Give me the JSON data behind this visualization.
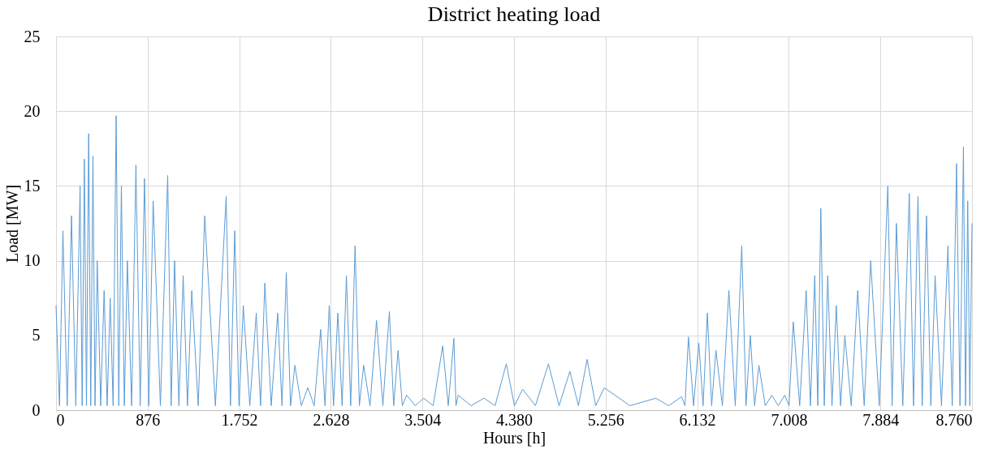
{
  "chart_data": {
    "type": "line",
    "title": "District heating load",
    "xlabel": "Hours [h]",
    "ylabel": "Load [MW]",
    "x": [
      0,
      33,
      66,
      107,
      148,
      189,
      230,
      250,
      271,
      291,
      312,
      332,
      353,
      373,
      394,
      427,
      460,
      489,
      518,
      546,
      575,
      600,
      625,
      653,
      682,
      723,
      764,
      805,
      846,
      887,
      929,
      998,
      1068,
      1101,
      1134,
      1175,
      1216,
      1257,
      1298,
      1360,
      1422,
      1524,
      1627,
      1668,
      1709,
      1750,
      1791,
      1853,
      1915,
      1956,
      1997,
      2058,
      2120,
      2161,
      2202,
      2243,
      2284,
      2346,
      2408,
      2469,
      2531,
      2572,
      2613,
      2654,
      2695,
      2736,
      2777,
      2818,
      2860,
      2901,
      2942,
      3003,
      3065,
      3126,
      3188,
      3229,
      3271,
      3312,
      3353,
      3435,
      3517,
      3607,
      3698,
      3751,
      3805,
      3825,
      3846,
      3969,
      4093,
      4199,
      4306,
      4384,
      4462,
      4585,
      4709,
      4811,
      4914,
      4996,
      5079,
      5161,
      5243,
      5489,
      5736,
      5859,
      5983,
      6015,
      6048,
      6097,
      6147,
      6188,
      6229,
      6270,
      6311,
      6373,
      6435,
      6496,
      6558,
      6599,
      6640,
      6681,
      6722,
      6783,
      6845,
      6907,
      6969,
      7010,
      7051,
      7112,
      7174,
      7215,
      7256,
      7285,
      7314,
      7347,
      7380,
      7421,
      7462,
      7503,
      7544,
      7605,
      7667,
      7729,
      7791,
      7873,
      7955,
      7996,
      8037,
      8098,
      8160,
      8201,
      8243,
      8284,
      8325,
      8366,
      8407,
      8468,
      8530,
      8571,
      8612,
      8645,
      8678,
      8698,
      8719,
      8739,
      8760
    ],
    "values": [
      7,
      0.3,
      12,
      0.3,
      13,
      0.3,
      15,
      0.3,
      16.8,
      0.3,
      18.5,
      0.3,
      17,
      0.3,
      10,
      0.3,
      8,
      0.3,
      7.5,
      0.3,
      19.7,
      0.3,
      15,
      0.3,
      10,
      0.3,
      16.4,
      0.3,
      15.5,
      0.3,
      14,
      0.3,
      15.7,
      0.3,
      10,
      0.3,
      9,
      0.3,
      8,
      0.3,
      13,
      0.3,
      14.3,
      0.3,
      12,
      0.3,
      7,
      0.3,
      6.5,
      0.3,
      8.5,
      0.3,
      6.5,
      0.3,
      9.2,
      0.3,
      3,
      0.3,
      1.5,
      0.3,
      5.4,
      0.3,
      7,
      0.3,
      6.5,
      0.3,
      9,
      0.3,
      11,
      0.3,
      3,
      0.3,
      6,
      0.3,
      6.6,
      0.3,
      4,
      0.3,
      1,
      0.3,
      0.8,
      0.3,
      4.3,
      0.3,
      4.8,
      0.3,
      1,
      0.3,
      0.8,
      0.3,
      3.1,
      0.3,
      1.4,
      0.3,
      3.1,
      0.3,
      2.6,
      0.3,
      3.4,
      0.3,
      1.5,
      0.3,
      0.8,
      0.3,
      0.9,
      0.3,
      4.9,
      0.3,
      4.5,
      0.3,
      6.5,
      0.3,
      4,
      0.3,
      8,
      0.3,
      11,
      0.3,
      5,
      0.3,
      3,
      0.3,
      1,
      0.3,
      1,
      0.3,
      5.9,
      0.3,
      8,
      0.3,
      9,
      0.3,
      13.5,
      0.3,
      9,
      0.3,
      7,
      0.3,
      5,
      0.3,
      8,
      0.3,
      10,
      0.3,
      15,
      0.3,
      12.5,
      0.3,
      14.5,
      0.3,
      14.3,
      0.3,
      13,
      0.3,
      9,
      0.3,
      11,
      0.3,
      16.5,
      0.3,
      17.6,
      0.3,
      14,
      0.3,
      12.5
    ],
    "color": "#5b9bd5",
    "xlim": [
      0,
      8760
    ],
    "xticks": [
      0,
      876,
      {
        "value": 1752,
        "label": "1.752"
      },
      {
        "value": 2628,
        "label": "2.628"
      },
      {
        "value": 3504,
        "label": "3.504"
      },
      {
        "value": 4380,
        "label": "4.380"
      },
      {
        "value": 5256,
        "label": "5.256"
      },
      {
        "value": 6132,
        "label": "6.132"
      },
      {
        "value": 7008,
        "label": "7.008"
      },
      {
        "value": 7884,
        "label": "7.884"
      },
      {
        "value": 8760,
        "label": "8.760"
      }
    ],
    "ylim": [
      0,
      25
    ],
    "yticks": [
      0,
      5,
      10,
      15,
      20,
      25
    ],
    "grid": true,
    "line_style": "solid"
  }
}
